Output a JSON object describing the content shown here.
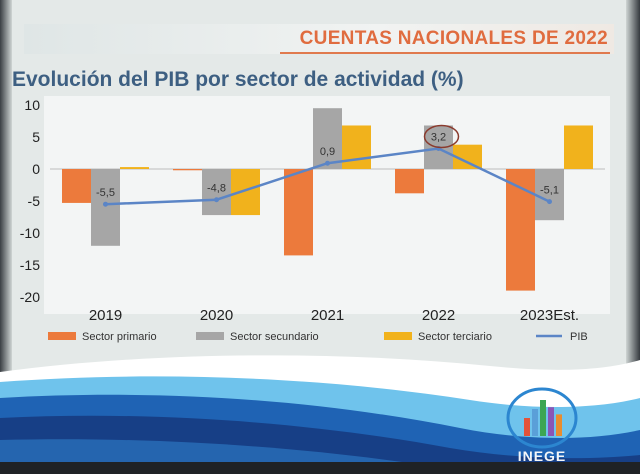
{
  "header": {
    "title": "CUENTAS NACIONALES DE 2022"
  },
  "chart_data": {
    "type": "bar",
    "title": "Evolución del PIB por sector de actividad (%)",
    "categories": [
      "2019",
      "2020",
      "2021",
      "2022",
      "2023Est."
    ],
    "ylim": [
      -20,
      10
    ],
    "yticks": [
      "10",
      "5",
      "0",
      "-5",
      "-10",
      "-15",
      "-20"
    ],
    "series": [
      {
        "name": "Sector primario",
        "type": "bar",
        "color": "#ec7a3c",
        "values": [
          -5.3,
          -0.2,
          -13.5,
          -3.8,
          -19
        ]
      },
      {
        "name": "Sector secundario",
        "type": "bar",
        "color": "#a6a6a6",
        "values": [
          -12,
          -7.2,
          9.5,
          6.8,
          -8
        ]
      },
      {
        "name": "Sector terciario",
        "type": "bar",
        "color": "#f1b21c",
        "values": [
          0.3,
          -7.2,
          6.8,
          3.8,
          6.8
        ]
      },
      {
        "name": "PIB",
        "type": "line",
        "color": "#5b85c6",
        "values": [
          -5.5,
          -4.8,
          0.9,
          3.2,
          -5.1
        ]
      }
    ],
    "line_labels": [
      "-5,5",
      "-4,8",
      "0,9",
      "3,2",
      "-5,1"
    ],
    "highlight_label_index": 3,
    "grid": false,
    "legend_position": "bottom"
  },
  "logo": {
    "text": "INEGE",
    "bar_colors": [
      "#e3533a",
      "#5a9fd8",
      "#3ca652",
      "#8a55b6",
      "#e98c2f"
    ]
  }
}
